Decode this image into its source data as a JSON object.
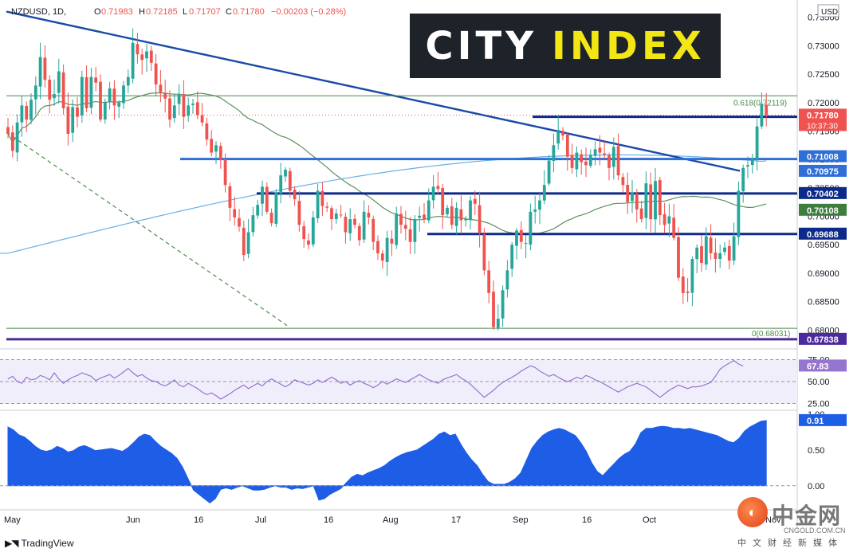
{
  "header": {
    "symbol": "NZDUSD, 1D,",
    "o_label": "O",
    "open": "0.71983",
    "h_label": "H",
    "high": "0.72185",
    "l_label": "L",
    "low": "0.71707",
    "c_label": "C",
    "close": "0.71780",
    "change": "−0.00203 (−0.28%)"
  },
  "logo": {
    "city": "CITY",
    "index": "INDEX"
  },
  "currency": "USD",
  "footer": {
    "tradingview": "TradingView"
  },
  "watermark": {
    "name": "中金网",
    "domain": "CNGOLD.COM.CN",
    "sub": "中文财经新媒体"
  },
  "colors": {
    "up": "#26a69a",
    "down": "#ef5350",
    "trendline": "#1a4aa8",
    "level_blue": "#2f6fd6",
    "level_navy": "#0d2a8a",
    "ma_green": "#5e8f5e",
    "ma_blue": "#6ab0e6",
    "rsi": "#9575cd",
    "corr": "#1e5ee6",
    "fib": "#4c8a4c"
  },
  "chart_data": [
    {
      "type": "candlestick",
      "title": "NZDUSD, 1D",
      "y_axis_ticks": [
        "0.73500",
        "0.73000",
        "0.72500",
        "0.72000",
        "0.71500",
        "0.71000",
        "0.70500",
        "0.70000",
        "0.69500",
        "0.69000",
        "0.68500",
        "0.68000"
      ],
      "ylim": [
        0.6778,
        0.7372
      ],
      "x_axis_labels": [
        "May",
        "Jun",
        "16",
        "Jul",
        "16",
        "Aug",
        "17",
        "Sep",
        "16",
        "Oct",
        "Nov"
      ],
      "closes": [
        0.7145,
        0.7115,
        0.7165,
        0.7195,
        0.717,
        0.7205,
        0.723,
        0.728,
        0.724,
        0.7205,
        0.7215,
        0.7255,
        0.719,
        0.7145,
        0.7192,
        0.7175,
        0.7245,
        0.719,
        0.7245,
        0.7235,
        0.717,
        0.72,
        0.7225,
        0.7195,
        0.72,
        0.723,
        0.7245,
        0.7305,
        0.7285,
        0.7275,
        0.729,
        0.727,
        0.7232,
        0.7218,
        0.7207,
        0.717,
        0.7195,
        0.7215,
        0.7175,
        0.7195,
        0.7198,
        0.7178,
        0.7165,
        0.7135,
        0.7112,
        0.7125,
        0.71,
        0.7055,
        0.7015,
        0.6998,
        0.6982,
        0.6932,
        0.6972,
        0.7002,
        0.702,
        0.7052,
        0.7008,
        0.6988,
        0.7042,
        0.7072,
        0.7082,
        0.7045,
        0.703,
        0.6985,
        0.696,
        0.695,
        0.6998,
        0.7045,
        0.7018,
        0.7015,
        0.6995,
        0.7005,
        0.7002,
        0.6972,
        0.6995,
        0.6985,
        0.6958,
        0.7008,
        0.6998,
        0.6955,
        0.6935,
        0.6922,
        0.6962,
        0.6952,
        0.7005,
        0.6985,
        0.6978,
        0.6955,
        0.6995,
        0.7001,
        0.6995,
        0.7028,
        0.7052,
        0.7048,
        0.7002,
        0.7015,
        0.6985,
        0.7015,
        0.6993,
        0.6995,
        0.7028,
        0.7022,
        0.697,
        0.6905,
        0.6865,
        0.6805,
        0.682,
        0.687,
        0.6905,
        0.695,
        0.6975,
        0.6955,
        0.6953,
        0.7008,
        0.7012,
        0.7028,
        0.7055,
        0.7098,
        0.7125,
        0.7152,
        0.7142,
        0.7105,
        0.7085,
        0.7112,
        0.7095,
        0.709,
        0.7108,
        0.7118,
        0.7112,
        0.7108,
        0.7085,
        0.7122,
        0.7072,
        0.7055,
        0.7025,
        0.7042,
        0.7012,
        0.6995,
        0.7058,
        0.6995,
        0.7062,
        0.7002,
        0.6985,
        0.7,
        0.6962,
        0.6892,
        0.6865,
        0.6865,
        0.6925,
        0.6945,
        0.6918,
        0.6965,
        0.6935,
        0.6925,
        0.6935,
        0.6945,
        0.6922,
        0.6965,
        0.7045,
        0.7085,
        0.709,
        0.7102,
        0.7158,
        0.7198,
        0.7178
      ],
      "current_price_tag": "0.71780",
      "countdown_tag": "10:37:30",
      "fib_levels": [
        {
          "label": "0.618(0.72119)",
          "value": 0.72119
        },
        {
          "label": "0(0.68031)",
          "value": 0.68031
        }
      ],
      "horizontal_levels": [
        {
          "tag": "0.71750",
          "value": 0.7175
        },
        {
          "tag": "0.71008",
          "value": 0.71008
        },
        {
          "tag": "0.70975",
          "value": 0.70975
        },
        {
          "tag": "0.70402",
          "value": 0.70402
        },
        {
          "tag": "0.70108",
          "value": 0.70108
        },
        {
          "tag": "0.69688",
          "value": 0.69688
        },
        {
          "tag": "0.67838",
          "value": 0.67838
        }
      ],
      "moving_averages": [
        {
          "value_tag": "0.70108",
          "color": "#5e8f5e"
        },
        {
          "value_tag": "0.70975",
          "color": "#6ab0e6"
        }
      ]
    },
    {
      "type": "line",
      "indicator": "RSI",
      "y_axis_ticks": [
        "75.00",
        "50.00",
        "25.00"
      ],
      "ylim": [
        20,
        80
      ],
      "current_value_tag": "67.83",
      "values": [
        53,
        56,
        50,
        48,
        55,
        52,
        53,
        57,
        55,
        52,
        60,
        53,
        48,
        52,
        55,
        57,
        60,
        58,
        56,
        51,
        54,
        56,
        58,
        54,
        57,
        61,
        65,
        60,
        56,
        58,
        54,
        51,
        50,
        47,
        45,
        48,
        52,
        46,
        44,
        48,
        45,
        42,
        38,
        35,
        37,
        34,
        30,
        33,
        36,
        40,
        43,
        46,
        42,
        45,
        48,
        45,
        50,
        53,
        50,
        47,
        44,
        47,
        52,
        50,
        48,
        46,
        48,
        52,
        49,
        52,
        55,
        52,
        48,
        50,
        46,
        49,
        51,
        48,
        46,
        43,
        46,
        50,
        47,
        50,
        53,
        51,
        49,
        52,
        55,
        58,
        55,
        52,
        50,
        48,
        52,
        54,
        56,
        58,
        54,
        51,
        47,
        42,
        37,
        32,
        36,
        40,
        45,
        49,
        52,
        55,
        58,
        62,
        65,
        68,
        66,
        62,
        59,
        56,
        58,
        55,
        52,
        50,
        52,
        55,
        53,
        57,
        55,
        52,
        50,
        47,
        44,
        41,
        38,
        41,
        44,
        46,
        48,
        46,
        44,
        40,
        36,
        32,
        36,
        40,
        43,
        46,
        44,
        42,
        44,
        44,
        45,
        47,
        49,
        56,
        64,
        68,
        71,
        74,
        70,
        67.83
      ]
    },
    {
      "type": "area",
      "indicator": "Correlation",
      "y_axis_ticks": [
        "1.00",
        "0.50",
        "0.00"
      ],
      "ylim": [
        -0.28,
        1.02
      ],
      "current_value_tag": "0.91",
      "values": [
        0.82,
        0.78,
        0.71,
        0.68,
        0.62,
        0.55,
        0.5,
        0.48,
        0.5,
        0.55,
        0.52,
        0.47,
        0.49,
        0.54,
        0.56,
        0.53,
        0.49,
        0.5,
        0.51,
        0.52,
        0.5,
        0.48,
        0.53,
        0.6,
        0.68,
        0.72,
        0.7,
        0.62,
        0.55,
        0.5,
        0.45,
        0.38,
        0.26,
        0.1,
        -0.06,
        -0.12,
        -0.18,
        -0.24,
        -0.18,
        -0.05,
        -0.03,
        -0.05,
        -0.02,
        0.0,
        -0.03,
        -0.06,
        -0.06,
        -0.05,
        -0.02,
        0.0,
        -0.02,
        -0.02,
        -0.05,
        -0.03,
        -0.04,
        -0.02,
        0.0,
        -0.2,
        -0.18,
        -0.12,
        -0.08,
        -0.04,
        0.04,
        0.12,
        0.16,
        0.14,
        0.18,
        0.21,
        0.24,
        0.28,
        0.34,
        0.39,
        0.43,
        0.46,
        0.48,
        0.5,
        0.55,
        0.6,
        0.65,
        0.72,
        0.75,
        0.7,
        0.72,
        0.58,
        0.46,
        0.36,
        0.28,
        0.16,
        0.06,
        0.02,
        0.02,
        0.02,
        0.05,
        0.1,
        0.18,
        0.35,
        0.52,
        0.62,
        0.7,
        0.75,
        0.78,
        0.8,
        0.78,
        0.74,
        0.7,
        0.6,
        0.48,
        0.32,
        0.2,
        0.14,
        0.22,
        0.3,
        0.38,
        0.44,
        0.48,
        0.58,
        0.74,
        0.8,
        0.8,
        0.82,
        0.83,
        0.82,
        0.8,
        0.8,
        0.79,
        0.8,
        0.78,
        0.76,
        0.74,
        0.72,
        0.7,
        0.66,
        0.62,
        0.6,
        0.66,
        0.76,
        0.82,
        0.86,
        0.9,
        0.91
      ]
    }
  ]
}
